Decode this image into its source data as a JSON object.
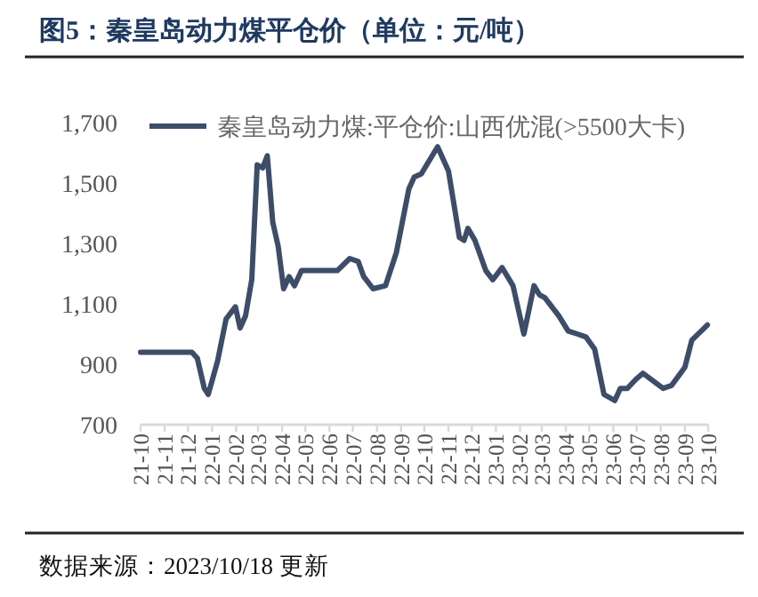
{
  "chart_data": {
    "type": "line",
    "title": "图5：秦皇岛动力煤平仓价（单位：元/吨）",
    "annotations": [
      "数据来源：2023/10/18 更新"
    ],
    "series": [
      {
        "name": "秦皇岛动力煤:平仓价:山西优混(>5500大卡)",
        "color": "#3d4d69",
        "x": [
          "2021-10-01",
          "2021-12-06",
          "2021-12-13",
          "2021-12-22",
          "2021-12-27",
          "2022-01-08",
          "2022-01-19",
          "2022-01-31",
          "2022-02-06",
          "2022-02-13",
          "2022-02-21",
          "2022-02-28",
          "2022-03-07",
          "2022-03-13",
          "2022-03-20",
          "2022-03-27",
          "2022-04-03",
          "2022-04-10",
          "2022-04-17",
          "2022-04-26",
          "2022-06-11",
          "2022-06-27",
          "2022-07-08",
          "2022-07-15",
          "2022-07-27",
          "2022-08-12",
          "2022-08-26",
          "2022-09-11",
          "2022-09-18",
          "2022-09-27",
          "2022-10-18",
          "2022-11-01",
          "2022-11-15",
          "2022-11-21",
          "2022-11-26",
          "2022-12-05",
          "2022-12-19",
          "2022-12-28",
          "2023-01-09",
          "2023-01-23",
          "2023-02-06",
          "2023-02-19",
          "2023-02-26",
          "2023-03-05",
          "2023-03-23",
          "2023-04-04",
          "2023-04-16",
          "2023-04-27",
          "2023-05-08",
          "2023-05-20",
          "2023-06-03",
          "2023-06-10",
          "2023-06-19",
          "2023-06-30",
          "2023-07-09",
          "2023-08-04",
          "2023-08-15",
          "2023-09-01",
          "2023-09-10",
          "2023-09-30"
        ],
        "values": [
          940,
          940,
          920,
          820,
          800,
          910,
          1050,
          1090,
          1020,
          1060,
          1180,
          1560,
          1550,
          1590,
          1370,
          1290,
          1150,
          1190,
          1160,
          1210,
          1210,
          1250,
          1240,
          1190,
          1150,
          1160,
          1270,
          1480,
          1520,
          1530,
          1620,
          1540,
          1320,
          1310,
          1350,
          1310,
          1210,
          1180,
          1220,
          1160,
          1000,
          1160,
          1130,
          1120,
          1060,
          1010,
          1000,
          990,
          950,
          800,
          780,
          820,
          820,
          850,
          870,
          820,
          830,
          890,
          980,
          1030
        ]
      }
    ],
    "xlim": [
      "2021-10",
      "2023-10"
    ],
    "xticks": [
      {
        "value": "2021-10",
        "label": "21-10"
      },
      {
        "value": "2021-11",
        "label": "21-11"
      },
      {
        "value": "2021-12",
        "label": "21-12"
      },
      {
        "value": "2022-01",
        "label": "22-01"
      },
      {
        "value": "2022-02",
        "label": "22-02"
      },
      {
        "value": "2022-03",
        "label": "22-03"
      },
      {
        "value": "2022-04",
        "label": "22-04"
      },
      {
        "value": "2022-05",
        "label": "22-05"
      },
      {
        "value": "2022-06",
        "label": "22-06"
      },
      {
        "value": "2022-07",
        "label": "22-07"
      },
      {
        "value": "2022-08",
        "label": "22-08"
      },
      {
        "value": "2022-09",
        "label": "22-09"
      },
      {
        "value": "2022-10",
        "label": "22-10"
      },
      {
        "value": "2022-11",
        "label": "22-11"
      },
      {
        "value": "2022-12",
        "label": "22-12"
      },
      {
        "value": "2023-01",
        "label": "23-01"
      },
      {
        "value": "2023-02",
        "label": "23-02"
      },
      {
        "value": "2023-03",
        "label": "23-03"
      },
      {
        "value": "2023-04",
        "label": "23-04"
      },
      {
        "value": "2023-05",
        "label": "23-05"
      },
      {
        "value": "2023-06",
        "label": "23-06"
      },
      {
        "value": "2023-07",
        "label": "23-07"
      },
      {
        "value": "2023-08",
        "label": "23-08"
      },
      {
        "value": "2023-09",
        "label": "23-09"
      },
      {
        "value": "2023-10",
        "label": "23-10"
      }
    ],
    "ylim": [
      700,
      1700
    ],
    "yticks": [
      {
        "value": 700,
        "label": "700"
      },
      {
        "value": 900,
        "label": "900"
      },
      {
        "value": 1100,
        "label": "1,100"
      },
      {
        "value": 1300,
        "label": "1,300"
      },
      {
        "value": 1500,
        "label": "1,500"
      },
      {
        "value": 1700,
        "label": "1,700"
      }
    ],
    "grid": false,
    "legend": "top left",
    "marker": "none",
    "line_style": "solid"
  }
}
